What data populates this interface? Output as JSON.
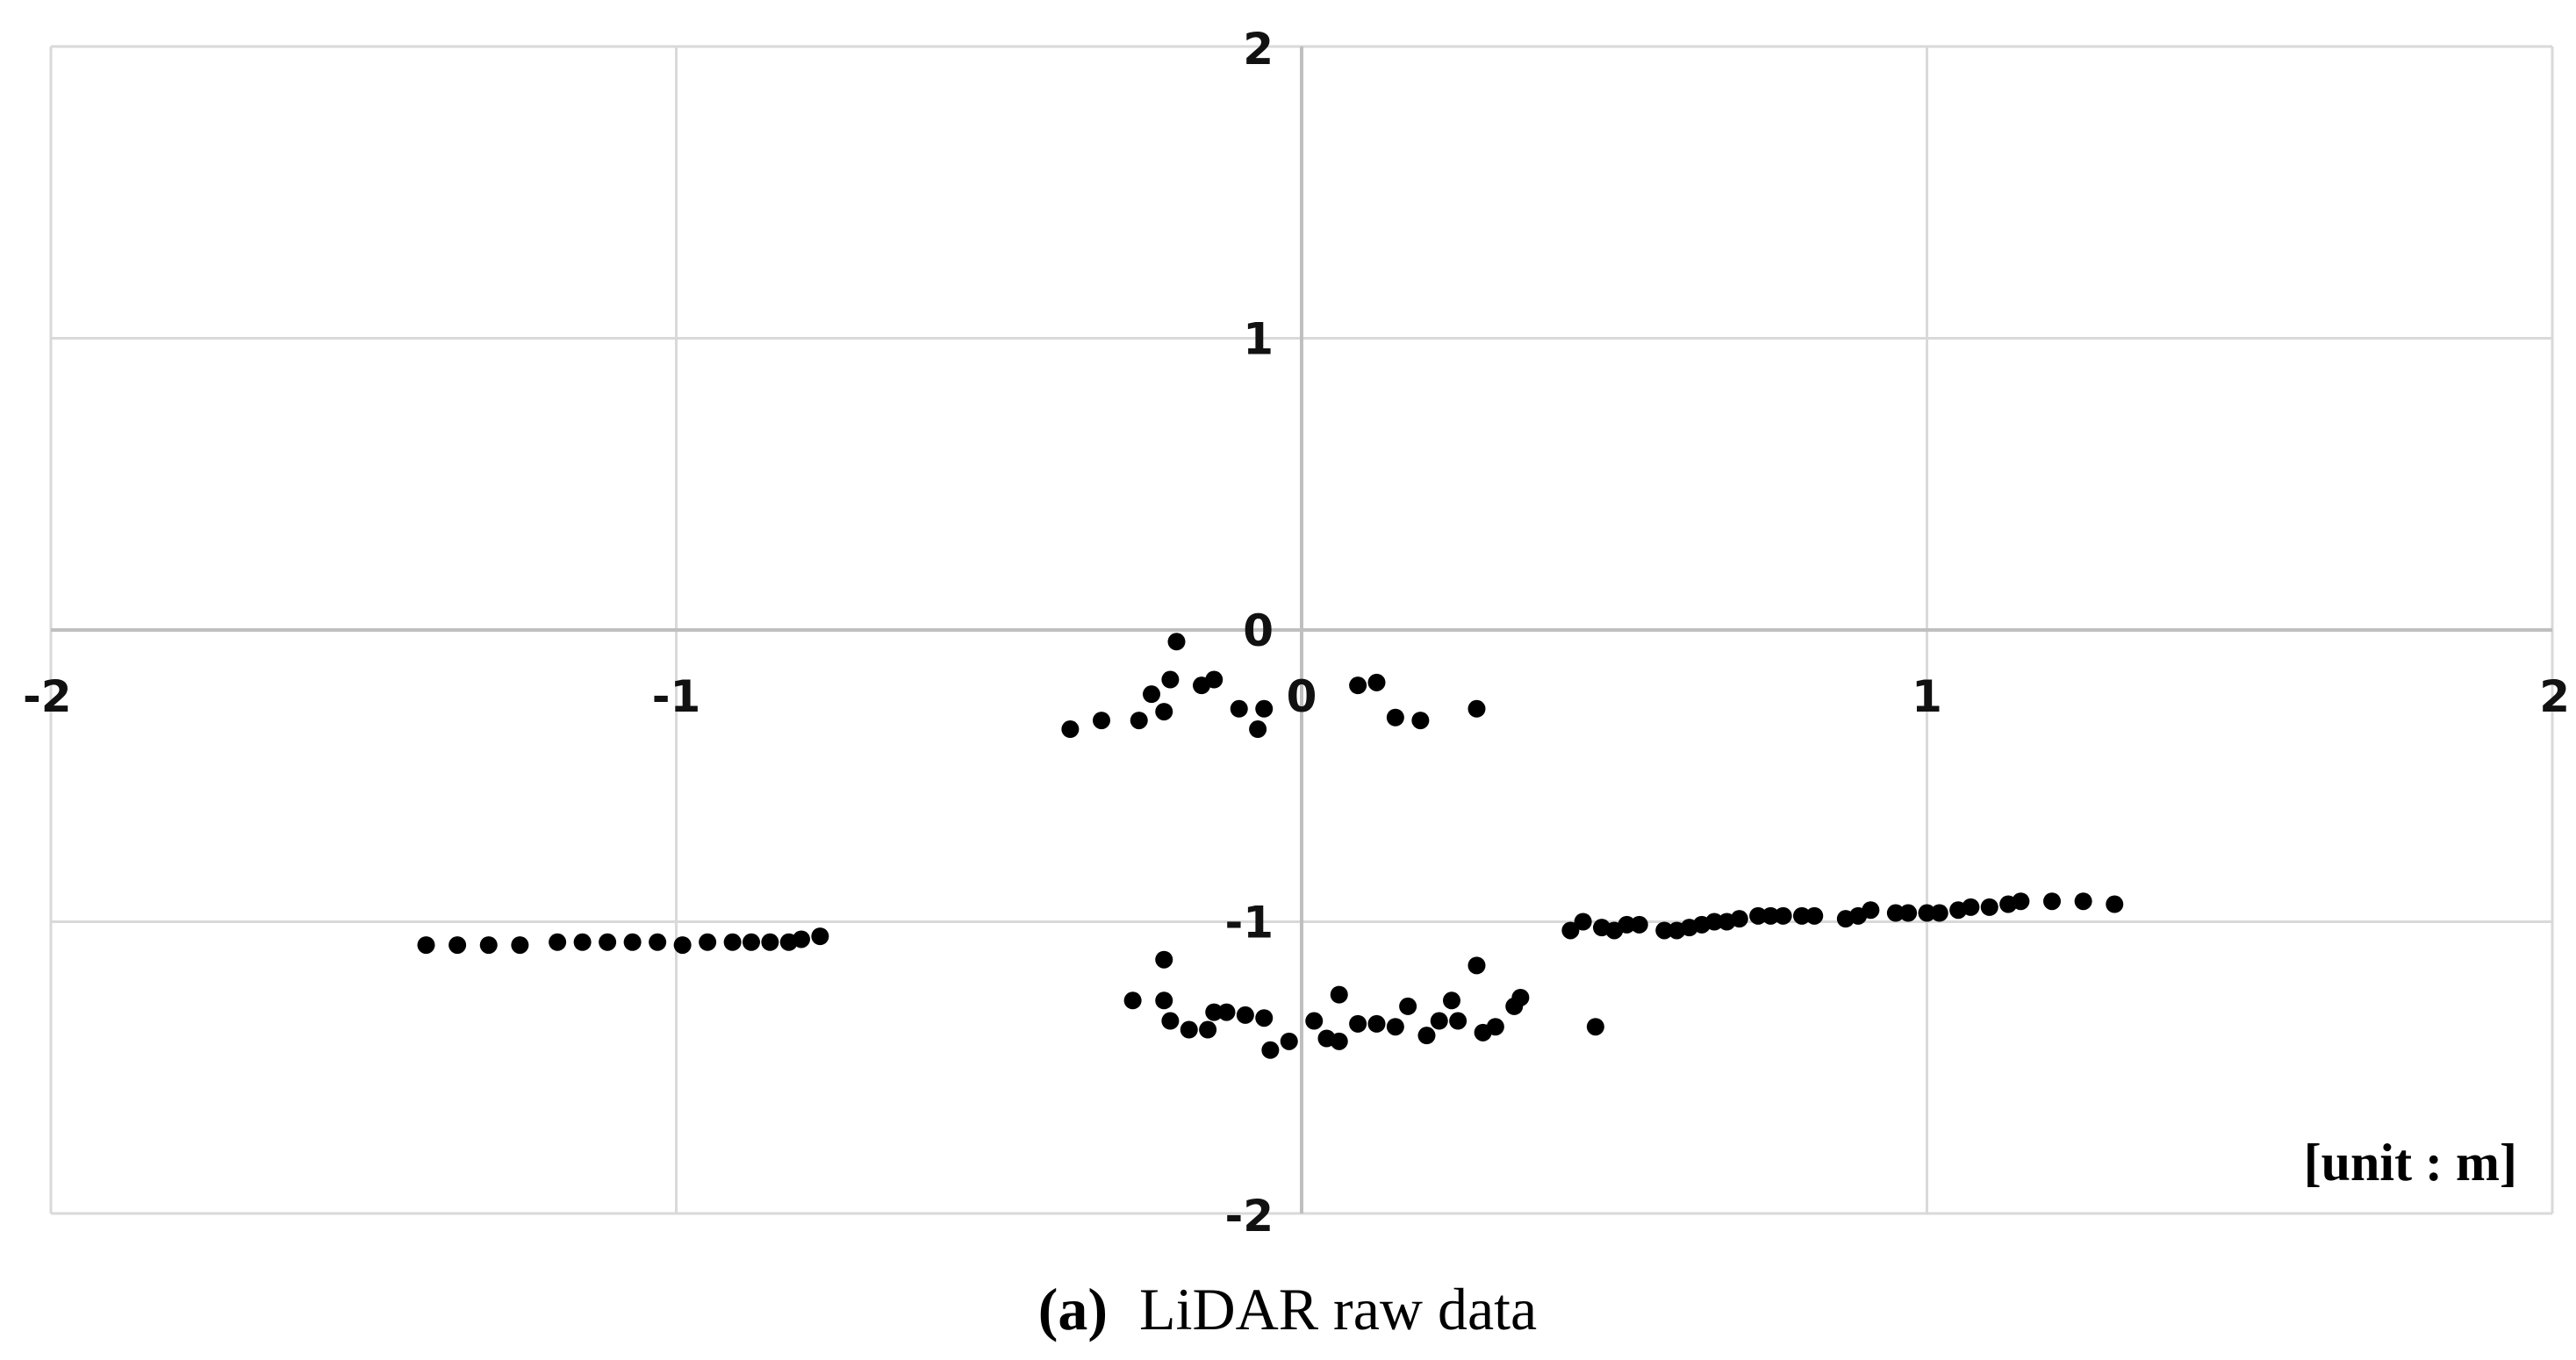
{
  "chart_data": {
    "type": "scatter",
    "title": "",
    "xlabel": "",
    "ylabel": "",
    "xlim": [
      -2,
      2
    ],
    "ylim": [
      -2,
      2
    ],
    "grid": true,
    "x_ticks": [
      "-2",
      "-1",
      "0",
      "1",
      "2"
    ],
    "y_ticks": [
      "2",
      "1",
      "0",
      "-1",
      "-2"
    ],
    "unit_label": "[unit : m]",
    "marker_color": "#000000",
    "grid_color": "#d9d9d9",
    "axis_color": "#bfbfbf",
    "series": [
      {
        "points": [
          [
            -1.4,
            -1.08
          ],
          [
            -1.35,
            -1.08
          ],
          [
            -1.3,
            -1.08
          ],
          [
            -1.25,
            -1.08
          ],
          [
            -1.19,
            -1.07
          ],
          [
            -1.15,
            -1.07
          ],
          [
            -1.11,
            -1.07
          ],
          [
            -1.07,
            -1.07
          ],
          [
            -1.03,
            -1.07
          ],
          [
            -0.99,
            -1.08
          ],
          [
            -0.95,
            -1.07
          ],
          [
            -0.91,
            -1.07
          ],
          [
            -0.88,
            -1.07
          ],
          [
            -0.85,
            -1.07
          ],
          [
            -0.82,
            -1.07
          ],
          [
            -0.8,
            -1.06
          ],
          [
            -0.77,
            -1.05
          ],
          [
            -0.37,
            -0.34
          ],
          [
            -0.32,
            -0.31
          ],
          [
            -0.26,
            -0.31
          ],
          [
            -0.24,
            -0.22
          ],
          [
            -0.22,
            -0.28
          ],
          [
            -0.21,
            -0.17
          ],
          [
            -0.2,
            -0.04
          ],
          [
            -0.16,
            -0.19
          ],
          [
            -0.14,
            -0.17
          ],
          [
            -0.1,
            -0.27
          ],
          [
            -0.07,
            -0.34
          ],
          [
            -0.06,
            -0.27
          ],
          [
            0.09,
            -0.19
          ],
          [
            0.12,
            -0.18
          ],
          [
            0.15,
            -0.3
          ],
          [
            0.19,
            -0.31
          ],
          [
            0.28,
            -0.27
          ],
          [
            -0.27,
            -1.27
          ],
          [
            -0.22,
            -1.27
          ],
          [
            -0.22,
            -1.13
          ],
          [
            -0.21,
            -1.34
          ],
          [
            -0.18,
            -1.37
          ],
          [
            -0.15,
            -1.37
          ],
          [
            -0.14,
            -1.31
          ],
          [
            -0.12,
            -1.31
          ],
          [
            -0.09,
            -1.32
          ],
          [
            -0.06,
            -1.33
          ],
          [
            -0.05,
            -1.44
          ],
          [
            -0.02,
            -1.41
          ],
          [
            0.02,
            -1.34
          ],
          [
            0.04,
            -1.4
          ],
          [
            0.06,
            -1.41
          ],
          [
            0.06,
            -1.25
          ],
          [
            0.09,
            -1.35
          ],
          [
            0.12,
            -1.35
          ],
          [
            0.15,
            -1.36
          ],
          [
            0.17,
            -1.29
          ],
          [
            0.2,
            -1.39
          ],
          [
            0.22,
            -1.34
          ],
          [
            0.25,
            -1.34
          ],
          [
            0.24,
            -1.27
          ],
          [
            0.28,
            -1.15
          ],
          [
            0.29,
            -1.38
          ],
          [
            0.31,
            -1.36
          ],
          [
            0.34,
            -1.29
          ],
          [
            0.35,
            -1.26
          ],
          [
            0.47,
            -1.36
          ],
          [
            0.43,
            -1.03
          ],
          [
            0.45,
            -1.0
          ],
          [
            0.48,
            -1.02
          ],
          [
            0.5,
            -1.03
          ],
          [
            0.52,
            -1.01
          ],
          [
            0.54,
            -1.01
          ],
          [
            0.58,
            -1.03
          ],
          [
            0.6,
            -1.03
          ],
          [
            0.62,
            -1.02
          ],
          [
            0.64,
            -1.01
          ],
          [
            0.66,
            -1.0
          ],
          [
            0.68,
            -1.0
          ],
          [
            0.7,
            -0.99
          ],
          [
            0.73,
            -0.98
          ],
          [
            0.75,
            -0.98
          ],
          [
            0.77,
            -0.98
          ],
          [
            0.8,
            -0.98
          ],
          [
            0.82,
            -0.98
          ],
          [
            0.87,
            -0.99
          ],
          [
            0.89,
            -0.98
          ],
          [
            0.91,
            -0.96
          ],
          [
            0.95,
            -0.97
          ],
          [
            0.97,
            -0.97
          ],
          [
            1.0,
            -0.97
          ],
          [
            1.02,
            -0.97
          ],
          [
            1.05,
            -0.96
          ],
          [
            1.07,
            -0.95
          ],
          [
            1.1,
            -0.95
          ],
          [
            1.13,
            -0.94
          ],
          [
            1.15,
            -0.93
          ],
          [
            1.2,
            -0.93
          ],
          [
            1.25,
            -0.93
          ],
          [
            1.3,
            -0.94
          ]
        ]
      }
    ]
  },
  "caption": {
    "tag": "(a)",
    "text": "LiDAR raw data"
  }
}
